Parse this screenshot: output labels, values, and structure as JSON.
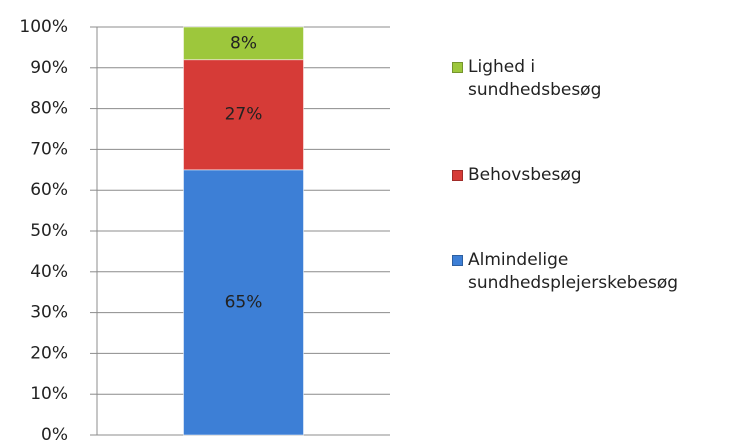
{
  "chart_data": {
    "type": "stacked_bar",
    "categories": [
      null
    ],
    "series": [
      {
        "name": "Almindelige sundhedsplejerskebesøg",
        "color": "#3d7fd6",
        "values": [
          65
        ],
        "value_labels": [
          "65%"
        ]
      },
      {
        "name": "Behovsbesøg",
        "color": "#d63b37",
        "values": [
          27
        ],
        "value_labels": [
          "27%"
        ]
      },
      {
        "name": "Lighed i sundhedsbesøg",
        "color": "#9dc73c",
        "values": [
          8
        ],
        "value_labels": [
          "8%"
        ]
      }
    ],
    "ylim": [
      0,
      100
    ],
    "yticks": [
      {
        "value": 0,
        "label": "0%"
      },
      {
        "value": 10,
        "label": "10%"
      },
      {
        "value": 20,
        "label": "20%"
      },
      {
        "value": 30,
        "label": "30%"
      },
      {
        "value": 40,
        "label": "40%"
      },
      {
        "value": 50,
        "label": "50%"
      },
      {
        "value": 60,
        "label": "60%"
      },
      {
        "value": 70,
        "label": "70%"
      },
      {
        "value": 80,
        "label": "80%"
      },
      {
        "value": 90,
        "label": "90%"
      },
      {
        "value": 100,
        "label": "100%"
      }
    ],
    "grid": true,
    "legend": "right"
  }
}
